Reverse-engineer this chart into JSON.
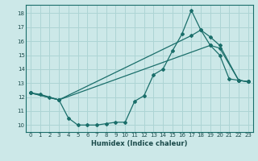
{
  "xlabel": "Humidex (Indice chaleur)",
  "background_color": "#cce8e8",
  "grid_color": "#add4d4",
  "line_color": "#1a6e6a",
  "xlim": [
    -0.5,
    23.5
  ],
  "ylim": [
    9.5,
    18.6
  ],
  "xticks": [
    0,
    1,
    2,
    3,
    4,
    5,
    6,
    7,
    8,
    9,
    10,
    11,
    12,
    13,
    14,
    15,
    16,
    17,
    18,
    19,
    20,
    21,
    22,
    23
  ],
  "yticks": [
    10,
    11,
    12,
    13,
    14,
    15,
    16,
    17,
    18
  ],
  "line1_x": [
    0,
    1,
    2,
    3,
    4,
    5,
    6,
    7,
    8,
    9,
    10,
    11,
    12,
    13,
    14,
    15,
    16,
    17,
    18,
    19,
    20,
    21,
    22,
    23
  ],
  "line1_y": [
    12.3,
    12.2,
    12.0,
    11.8,
    10.5,
    10.0,
    10.0,
    10.0,
    10.1,
    10.2,
    10.2,
    11.7,
    12.1,
    13.6,
    14.0,
    15.3,
    16.5,
    18.2,
    16.8,
    15.7,
    15.0,
    13.3,
    13.2,
    13.1
  ],
  "line2_x": [
    0,
    3,
    19,
    20,
    22,
    23
  ],
  "line2_y": [
    12.3,
    11.8,
    15.7,
    15.5,
    13.2,
    13.1
  ],
  "line3_x": [
    0,
    3,
    17,
    18,
    19,
    20,
    22,
    23
  ],
  "line3_y": [
    12.3,
    11.8,
    16.4,
    16.8,
    16.3,
    15.7,
    13.2,
    13.1
  ]
}
